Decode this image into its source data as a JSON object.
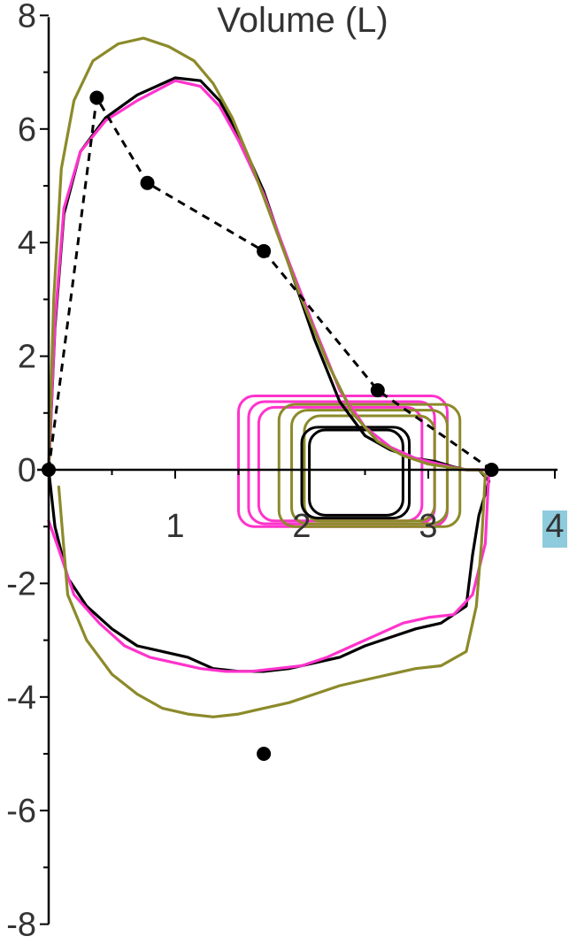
{
  "chart_data": {
    "type": "line",
    "title": "",
    "ylabel": "",
    "xlabel": "Volume (L)",
    "xlim": [
      0,
      4
    ],
    "ylim": [
      -8,
      8
    ],
    "x_ticks": [
      {
        "value": 1,
        "label": "1"
      },
      {
        "value": 2,
        "label": "2"
      },
      {
        "value": 3,
        "label": "3"
      },
      {
        "value": 4,
        "label": "4",
        "highlight": "#8ecbdc"
      }
    ],
    "y_ticks": [
      {
        "value": 8,
        "label": "8"
      },
      {
        "value": 6,
        "label": "6"
      },
      {
        "value": 4,
        "label": "4"
      },
      {
        "value": 2,
        "label": "2"
      },
      {
        "value": 0,
        "label": "0"
      },
      {
        "value": -2,
        "label": "-2"
      },
      {
        "value": -4,
        "label": "-4"
      },
      {
        "value": -6,
        "label": "-6"
      },
      {
        "value": -8,
        "label": "-8"
      }
    ],
    "grid": false,
    "series": [
      {
        "color": "#000000",
        "style": "solid",
        "x": [
          0.0,
          0.05,
          0.12,
          0.25,
          0.45,
          0.7,
          1.0,
          1.2,
          1.35,
          1.5,
          1.7,
          1.9,
          2.1,
          2.3,
          2.5,
          2.7,
          2.9,
          3.05,
          3.2,
          3.3,
          3.4,
          3.48,
          3.4,
          3.35,
          3.3,
          3.1,
          2.9,
          2.7,
          2.5,
          2.3,
          2.1,
          1.9,
          1.7,
          1.5,
          1.3,
          1.1,
          0.9,
          0.7,
          0.5,
          0.3,
          0.15,
          0.05,
          0.0
        ],
        "y": [
          0.0,
          2.5,
          4.5,
          5.6,
          6.2,
          6.6,
          6.9,
          6.85,
          6.5,
          5.9,
          4.9,
          3.6,
          2.3,
          1.2,
          0.6,
          0.35,
          0.2,
          0.15,
          0.05,
          0.0,
          0.0,
          -0.2,
          -0.8,
          -1.5,
          -2.4,
          -2.7,
          -2.8,
          -2.95,
          -3.1,
          -3.3,
          -3.4,
          -3.5,
          -3.55,
          -3.55,
          -3.5,
          -3.3,
          -3.2,
          -3.1,
          -2.8,
          -2.4,
          -1.9,
          -1.0,
          0.0
        ]
      },
      {
        "color": "#ff33cc",
        "style": "solid",
        "x": [
          0.0,
          0.05,
          0.12,
          0.25,
          0.45,
          0.7,
          1.0,
          1.2,
          1.35,
          1.5,
          1.7,
          1.9,
          2.1,
          2.3,
          2.5,
          2.7,
          2.9,
          3.05,
          3.2,
          3.3,
          3.4,
          3.48,
          3.45,
          3.35,
          3.2,
          3.0,
          2.8,
          2.6,
          2.4,
          2.2,
          2.0,
          1.8,
          1.6,
          1.4,
          1.2,
          1.0,
          0.8,
          0.6,
          0.4,
          0.2,
          0.08,
          0.0
        ],
        "y": [
          0.0,
          2.6,
          4.6,
          5.6,
          6.15,
          6.5,
          6.85,
          6.75,
          6.4,
          5.8,
          4.85,
          3.65,
          2.5,
          1.4,
          0.75,
          0.4,
          0.2,
          0.12,
          0.04,
          0.0,
          0.0,
          0.0,
          -1.3,
          -2.2,
          -2.55,
          -2.6,
          -2.7,
          -2.9,
          -3.1,
          -3.3,
          -3.45,
          -3.5,
          -3.55,
          -3.55,
          -3.5,
          -3.4,
          -3.3,
          -3.1,
          -2.7,
          -2.2,
          -1.4,
          -0.9
        ]
      },
      {
        "color": "#8c8a2a",
        "style": "solid",
        "x": [
          0.0,
          0.04,
          0.1,
          0.2,
          0.35,
          0.55,
          0.75,
          0.95,
          1.15,
          1.3,
          1.45,
          1.6,
          1.8,
          2.0,
          2.2,
          2.4,
          2.6,
          2.8,
          3.0,
          3.15,
          3.3,
          3.35,
          3.4,
          3.45,
          3.42,
          3.38,
          3.3,
          3.1,
          2.9,
          2.7,
          2.5,
          2.3,
          2.1,
          1.9,
          1.7,
          1.5,
          1.3,
          1.1,
          0.9,
          0.7,
          0.5,
          0.3,
          0.15,
          0.08
        ],
        "y": [
          0.0,
          3.0,
          5.3,
          6.5,
          7.2,
          7.5,
          7.6,
          7.45,
          7.2,
          6.8,
          6.2,
          5.4,
          4.2,
          3.0,
          1.9,
          1.0,
          0.5,
          0.25,
          0.1,
          0.05,
          0.0,
          0.0,
          0.0,
          -0.1,
          -1.3,
          -2.4,
          -3.2,
          -3.45,
          -3.5,
          -3.6,
          -3.7,
          -3.8,
          -3.95,
          -4.1,
          -4.2,
          -4.3,
          -4.35,
          -4.3,
          -4.2,
          -3.95,
          -3.6,
          -3.0,
          -2.2,
          -0.3
        ]
      },
      {
        "color": "#000000",
        "style": "dashed",
        "markers": true,
        "x": [
          0.0,
          0.38,
          0.78,
          1.7,
          2.6,
          3.5
        ],
        "y": [
          0.0,
          6.55,
          5.05,
          3.85,
          1.4,
          0.0
        ]
      }
    ],
    "tidal_loops": [
      {
        "color": "#ff33cc",
        "x_range": [
          1.5,
          3.15
        ],
        "y_range": [
          -1.0,
          1.3
        ]
      },
      {
        "color": "#ff33cc",
        "x_range": [
          1.58,
          3.05
        ],
        "y_range": [
          -0.95,
          1.2
        ]
      },
      {
        "color": "#ff33cc",
        "x_range": [
          1.66,
          2.95
        ],
        "y_range": [
          -0.9,
          1.1
        ]
      },
      {
        "color": "#8c8a2a",
        "x_range": [
          1.82,
          3.25
        ],
        "y_range": [
          -1.0,
          1.15
        ]
      },
      {
        "color": "#8c8a2a",
        "x_range": [
          1.92,
          3.15
        ],
        "y_range": [
          -0.95,
          1.05
        ]
      },
      {
        "color": "#8c8a2a",
        "x_range": [
          2.02,
          3.05
        ],
        "y_range": [
          -0.9,
          0.95
        ]
      },
      {
        "color": "#000000",
        "x_range": [
          2.0,
          2.85
        ],
        "y_range": [
          -0.85,
          0.75
        ]
      },
      {
        "color": "#000000",
        "x_range": [
          2.06,
          2.8
        ],
        "y_range": [
          -0.8,
          0.7
        ]
      }
    ],
    "isolated_points": [
      {
        "x": 1.7,
        "y": -5.0
      }
    ]
  }
}
